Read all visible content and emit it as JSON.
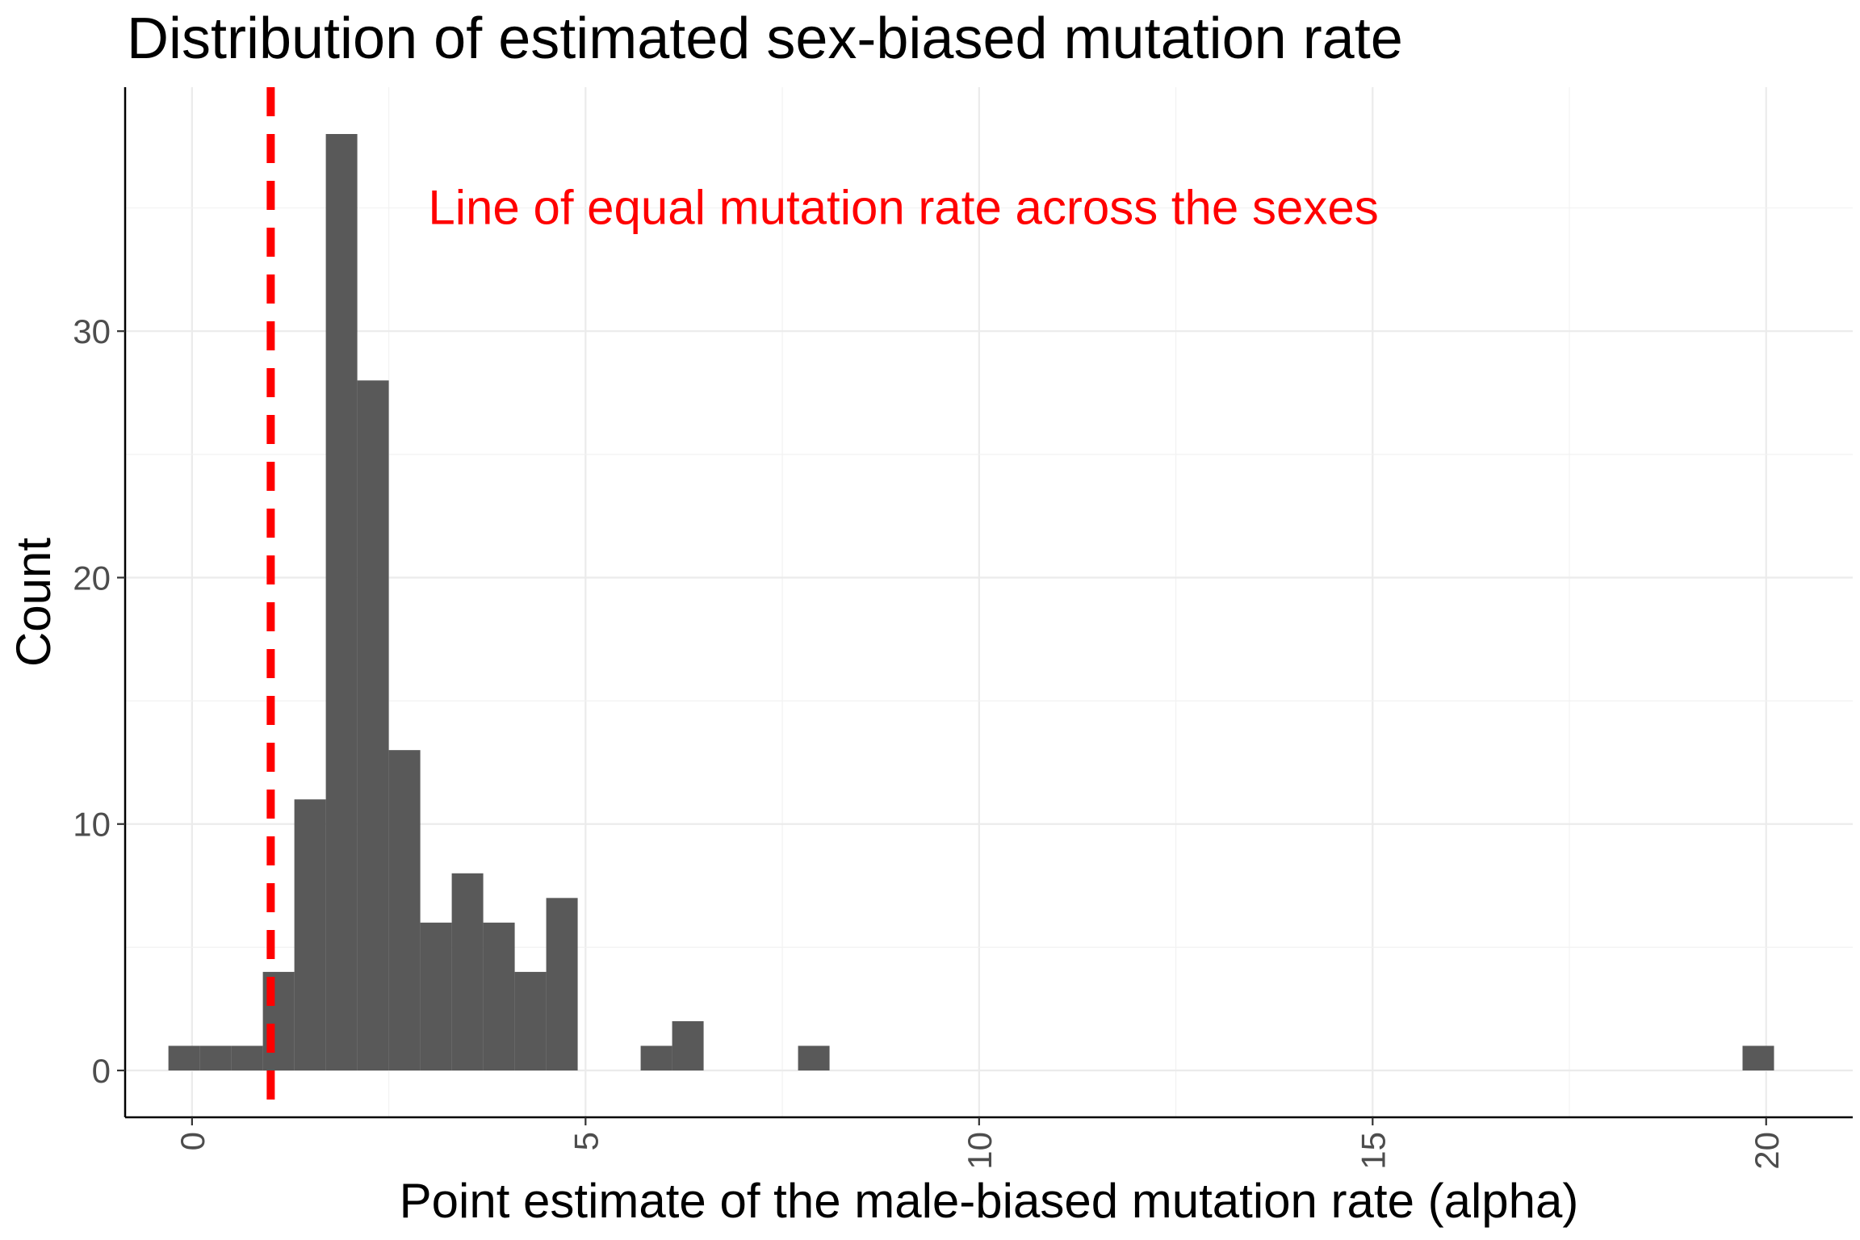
{
  "chart_data": {
    "type": "bar",
    "title": "Distribution of estimated sex-biased mutation rate",
    "xlabel": "Point estimate of the male-biased mutation rate (alpha)",
    "ylabel": "Count",
    "xlim": [
      -0.85,
      21.1
    ],
    "ylim": [
      -1.9,
      39.9
    ],
    "x_ticks": [
      0,
      5,
      10,
      15,
      20
    ],
    "y_ticks": [
      0,
      10,
      20,
      30
    ],
    "grid": true,
    "legend": "none",
    "bin_width": 0.4,
    "bins": [
      {
        "x0": -0.3,
        "x1": 0.1,
        "count": 1
      },
      {
        "x0": 0.1,
        "x1": 0.5,
        "count": 1
      },
      {
        "x0": 0.5,
        "x1": 0.9,
        "count": 1
      },
      {
        "x0": 0.9,
        "x1": 1.3,
        "count": 4
      },
      {
        "x0": 1.3,
        "x1": 1.7,
        "count": 11
      },
      {
        "x0": 1.7,
        "x1": 2.1,
        "count": 38
      },
      {
        "x0": 2.1,
        "x1": 2.5,
        "count": 28
      },
      {
        "x0": 2.5,
        "x1": 2.9,
        "count": 13
      },
      {
        "x0": 2.9,
        "x1": 3.3,
        "count": 6
      },
      {
        "x0": 3.3,
        "x1": 3.7,
        "count": 8
      },
      {
        "x0": 3.7,
        "x1": 4.1,
        "count": 6
      },
      {
        "x0": 4.1,
        "x1": 4.5,
        "count": 4
      },
      {
        "x0": 4.5,
        "x1": 4.9,
        "count": 7
      },
      {
        "x0": 5.7,
        "x1": 6.1,
        "count": 1
      },
      {
        "x0": 6.1,
        "x1": 6.5,
        "count": 2
      },
      {
        "x0": 7.7,
        "x1": 8.1,
        "count": 1
      },
      {
        "x0": 19.7,
        "x1": 20.1,
        "count": 1
      }
    ],
    "reference_line": {
      "x": 1,
      "style": "dashed",
      "color": "#ff0000"
    },
    "annotation": {
      "text": "Line of equal mutation rate across the sexes",
      "x": 3,
      "y": 35,
      "anchor": "start",
      "color": "#ff0000"
    },
    "bar_color": "#595959"
  }
}
